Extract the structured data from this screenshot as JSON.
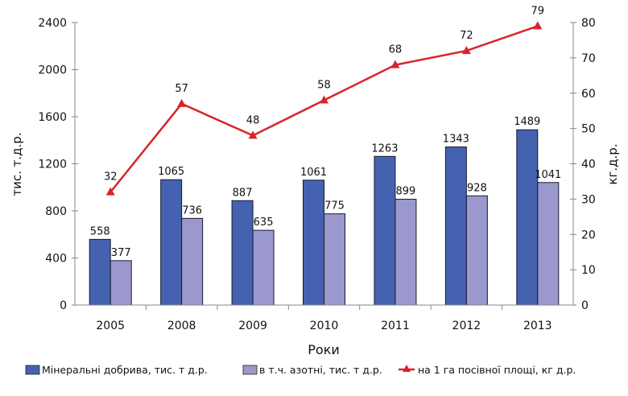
{
  "chart_data": {
    "type": "bar",
    "categories": [
      "2005",
      "2008",
      "2009",
      "2010",
      "2011",
      "2012",
      "2013"
    ],
    "series": [
      {
        "name": "Мінеральні добрива, тис. т д.р.",
        "type": "bar",
        "axis": "left",
        "color": "#4462b0",
        "values": [
          558,
          1065,
          887,
          1061,
          1263,
          1343,
          1489
        ]
      },
      {
        "name": "в т.ч. азотні, тис. т д.р.",
        "type": "bar",
        "axis": "left",
        "color": "#9a98cc",
        "values": [
          377,
          736,
          635,
          775,
          899,
          928,
          1041
        ]
      },
      {
        "name": "на 1 га посівної площі, кг д.р.",
        "type": "line",
        "axis": "right",
        "color": "#d9232a",
        "values": [
          32,
          57,
          48,
          58,
          68,
          72,
          79
        ]
      }
    ],
    "xlabel": "Роки",
    "ylabel": "тис. т.д.р.",
    "y2label": "кг.д.р.",
    "ylim": [
      0,
      2400
    ],
    "y2lim": [
      0,
      80
    ],
    "yticks": [
      0,
      400,
      800,
      1200,
      1600,
      2000,
      2400
    ],
    "y2ticks": [
      0,
      10,
      20,
      30,
      40,
      50,
      60,
      70,
      80
    ],
    "legend": "bottom",
    "grid": false
  }
}
